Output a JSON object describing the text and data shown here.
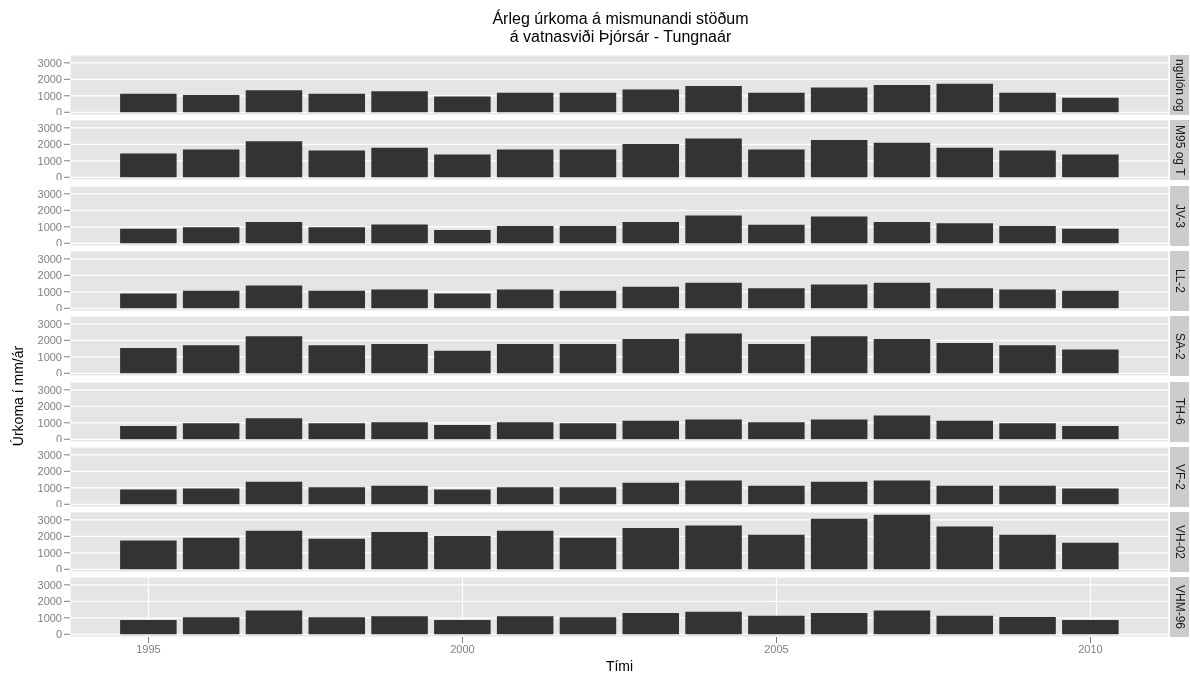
{
  "chart_data": [
    {
      "type": "bar",
      "title": "Árleg úrkoma á mismunandi stöðum\ná vatnasviði Þjórsár - Tungnaár",
      "annotations": [
        "ngulón og"
      ],
      "x": [
        1995,
        1996,
        1997,
        1998,
        1999,
        2000,
        2001,
        2002,
        2003,
        2004,
        2005,
        2006,
        2007,
        2008,
        2009,
        2010
      ],
      "values": [
        1120,
        1050,
        1340,
        1120,
        1270,
        960,
        1180,
        1180,
        1380,
        1600,
        1180,
        1500,
        1660,
        1730,
        1180,
        880
      ],
      "color": "#333333",
      "xlim": [
        1993.75,
        2011.25
      ],
      "ylim": [
        -165,
        3475
      ],
      "yticks": [
        0,
        1000,
        2000,
        3000
      ],
      "xticks": [
        1995,
        2000,
        2005,
        2010
      ],
      "grid": true,
      "tick_labels": "y"
    },
    {
      "type": "bar",
      "annotations": [
        "M95 og T"
      ],
      "x": [
        1995,
        1996,
        1997,
        1998,
        1999,
        2000,
        2001,
        2002,
        2003,
        2004,
        2005,
        2006,
        2007,
        2008,
        2009,
        2010
      ],
      "values": [
        1450,
        1690,
        2190,
        1620,
        1790,
        1380,
        1690,
        1690,
        2020,
        2360,
        1690,
        2260,
        2100,
        1790,
        1620,
        1380
      ],
      "color": "#333333",
      "xlim": [
        1993.75,
        2011.25
      ],
      "ylim": [
        -165,
        3475
      ],
      "yticks": [
        0,
        1000,
        2000,
        3000
      ],
      "xticks": [
        1995,
        2000,
        2005,
        2010
      ],
      "grid": true,
      "tick_labels": "y"
    },
    {
      "type": "bar",
      "annotations": [
        "JV-3"
      ],
      "x": [
        1995,
        1996,
        1997,
        1998,
        1999,
        2000,
        2001,
        2002,
        2003,
        2004,
        2005,
        2006,
        2007,
        2008,
        2009,
        2010
      ],
      "values": [
        880,
        980,
        1290,
        980,
        1140,
        810,
        1050,
        1050,
        1290,
        1690,
        1120,
        1620,
        1290,
        1210,
        1050,
        880
      ],
      "color": "#333333",
      "xlim": [
        1993.75,
        2011.25
      ],
      "ylim": [
        -165,
        3475
      ],
      "yticks": [
        0,
        1000,
        2000,
        3000
      ],
      "xticks": [
        1995,
        2000,
        2005,
        2010
      ],
      "grid": true,
      "tick_labels": "y"
    },
    {
      "type": "bar",
      "annotations": [
        "LL-2"
      ],
      "x": [
        1995,
        1996,
        1997,
        1998,
        1999,
        2000,
        2001,
        2002,
        2003,
        2004,
        2005,
        2006,
        2007,
        2008,
        2009,
        2010
      ],
      "values": [
        900,
        1070,
        1380,
        1070,
        1140,
        900,
        1140,
        1070,
        1310,
        1550,
        1210,
        1450,
        1550,
        1210,
        1140,
        1070
      ],
      "color": "#333333",
      "xlim": [
        1993.75,
        2011.25
      ],
      "ylim": [
        -165,
        3475
      ],
      "yticks": [
        0,
        1000,
        2000,
        3000
      ],
      "xticks": [
        1995,
        2000,
        2005,
        2010
      ],
      "grid": true,
      "tick_labels": "y"
    },
    {
      "type": "bar",
      "ylabel": "Úrkoma í mm/ár",
      "annotations": [
        "SA-2"
      ],
      "x": [
        1995,
        1996,
        1997,
        1998,
        1999,
        2000,
        2001,
        2002,
        2003,
        2004,
        2005,
        2006,
        2007,
        2008,
        2009,
        2010
      ],
      "values": [
        1540,
        1700,
        2250,
        1700,
        1770,
        1370,
        1770,
        1770,
        2080,
        2410,
        1770,
        2250,
        2080,
        1840,
        1700,
        1440
      ],
      "color": "#333333",
      "xlim": [
        1993.75,
        2011.25
      ],
      "ylim": [
        -165,
        3475
      ],
      "yticks": [
        0,
        1000,
        2000,
        3000
      ],
      "xticks": [
        1995,
        2000,
        2005,
        2010
      ],
      "grid": true,
      "tick_labels": "y"
    },
    {
      "type": "bar",
      "annotations": [
        "TH-6"
      ],
      "x": [
        1995,
        1996,
        1997,
        1998,
        1999,
        2000,
        2001,
        2002,
        2003,
        2004,
        2005,
        2006,
        2007,
        2008,
        2009,
        2010
      ],
      "values": [
        800,
        970,
        1280,
        970,
        1040,
        870,
        1040,
        970,
        1130,
        1200,
        1040,
        1200,
        1440,
        1130,
        970,
        800
      ],
      "color": "#333333",
      "xlim": [
        1993.75,
        2011.25
      ],
      "ylim": [
        -165,
        3475
      ],
      "yticks": [
        0,
        1000,
        2000,
        3000
      ],
      "xticks": [
        1995,
        2000,
        2005,
        2010
      ],
      "grid": true,
      "tick_labels": "y"
    },
    {
      "type": "bar",
      "annotations": [
        "VF-2"
      ],
      "x": [
        1995,
        1996,
        1997,
        1998,
        1999,
        2000,
        2001,
        2002,
        2003,
        2004,
        2005,
        2006,
        2007,
        2008,
        2009,
        2010
      ],
      "values": [
        890,
        960,
        1370,
        1030,
        1130,
        890,
        1030,
        1030,
        1300,
        1440,
        1130,
        1370,
        1440,
        1130,
        1130,
        960
      ],
      "color": "#333333",
      "xlim": [
        1993.75,
        2011.25
      ],
      "ylim": [
        -165,
        3475
      ],
      "yticks": [
        0,
        1000,
        2000,
        3000
      ],
      "xticks": [
        1995,
        2000,
        2005,
        2010
      ],
      "grid": true,
      "tick_labels": "y"
    },
    {
      "type": "bar",
      "annotations": [
        "VH-02"
      ],
      "x": [
        1995,
        1996,
        1997,
        1998,
        1999,
        2000,
        2001,
        2002,
        2003,
        2004,
        2005,
        2006,
        2007,
        2008,
        2009,
        2010
      ],
      "values": [
        1750,
        1920,
        2330,
        1850,
        2260,
        2020,
        2330,
        1920,
        2500,
        2660,
        2090,
        3070,
        3310,
        2590,
        2090,
        1610
      ],
      "color": "#333333",
      "xlim": [
        1993.75,
        2011.25
      ],
      "ylim": [
        -165,
        3475
      ],
      "yticks": [
        0,
        1000,
        2000,
        3000
      ],
      "xticks": [
        1995,
        2000,
        2005,
        2010
      ],
      "grid": true,
      "tick_labels": "y"
    },
    {
      "type": "bar",
      "xlabel": "Tími",
      "annotations": [
        "VHM-96"
      ],
      "x": [
        1995,
        1996,
        1997,
        1998,
        1999,
        2000,
        2001,
        2002,
        2003,
        2004,
        2005,
        2006,
        2007,
        2008,
        2009,
        2010
      ],
      "values": [
        860,
        1030,
        1440,
        1030,
        1100,
        860,
        1100,
        1030,
        1290,
        1360,
        1120,
        1290,
        1440,
        1120,
        1050,
        860
      ],
      "color": "#333333",
      "xlim": [
        1993.75,
        2011.25
      ],
      "ylim": [
        -165,
        3475
      ],
      "yticks": [
        0,
        1000,
        2000,
        3000
      ],
      "xticks": [
        1995,
        2000,
        2005,
        2010
      ],
      "grid": true
    }
  ]
}
